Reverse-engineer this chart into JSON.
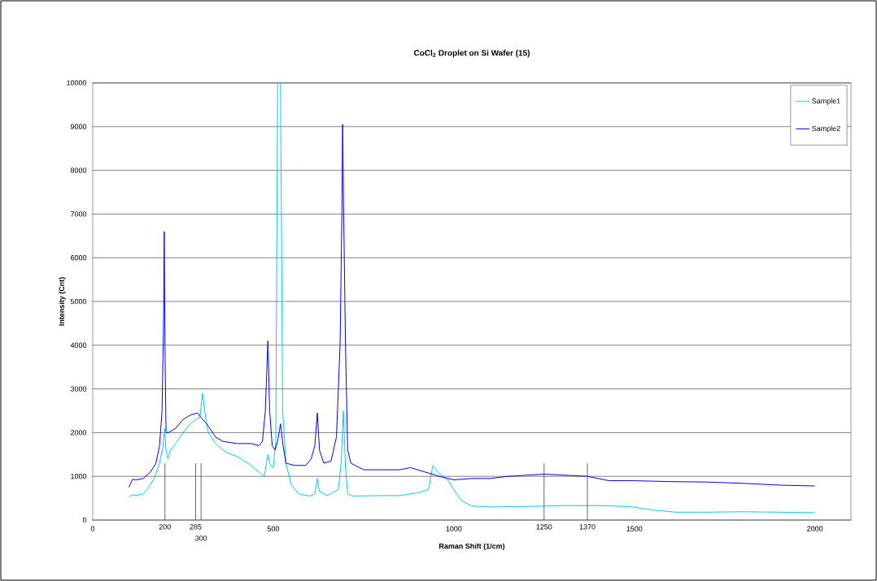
{
  "chart_data": {
    "type": "line",
    "title": "CoCl$_{2}$ Droplet on Si Wafer (15)",
    "xlabel": "Raman Shift (1/cm)",
    "ylabel": "Intensity (Cnt)",
    "xlim": [
      0,
      2100
    ],
    "xticks": [
      0,
      500,
      1000,
      1500,
      2000
    ],
    "ylim": [
      0,
      10000
    ],
    "yticks": [
      0,
      1000,
      2000,
      3000,
      4000,
      5000,
      6000,
      7000,
      8000,
      9000,
      10000
    ],
    "grid": "y",
    "legend": "top right",
    "ref_lines": [
      {
        "axis": "x",
        "value": 200,
        "label": "200"
      },
      {
        "axis": "x",
        "value": 285,
        "label": "285"
      },
      {
        "axis": "x",
        "value": 300,
        "label": "300"
      },
      {
        "axis": "x",
        "value": 1250,
        "label": "1250"
      },
      {
        "axis": "x",
        "value": 1370,
        "label": "1370"
      }
    ],
    "series": [
      {
        "name": "Sample1",
        "color": "#00ccff",
        "x": [
          100,
          110,
          120,
          140,
          155,
          170,
          185,
          195,
          199,
          203,
          208,
          215,
          230,
          250,
          270,
          285,
          297,
          304,
          310,
          320,
          340,
          370,
          400,
          430,
          460,
          475,
          485,
          492,
          500,
          507,
          512,
          520,
          526,
          535,
          550,
          570,
          600,
          615,
          622,
          628,
          650,
          680,
          688,
          694,
          700,
          706,
          720,
          800,
          850,
          900,
          930,
          942,
          955,
          985,
          1000,
          1020,
          1050,
          1100,
          1200,
          1300,
          1400,
          1450,
          1495,
          1550,
          1615,
          1700,
          1800,
          1900,
          2000
        ],
        "values": [
          530,
          580,
          560,
          600,
          750,
          950,
          1300,
          1700,
          2100,
          1600,
          1400,
          1600,
          1750,
          2000,
          2200,
          2300,
          2350,
          2900,
          2500,
          2000,
          1750,
          1550,
          1450,
          1300,
          1100,
          1000,
          1500,
          1250,
          1200,
          1800,
          10000,
          10000,
          2500,
          1300,
          800,
          600,
          550,
          600,
          950,
          650,
          560,
          700,
          1300,
          2500,
          1200,
          600,
          550,
          560,
          560,
          620,
          700,
          1250,
          1100,
          900,
          700,
          450,
          320,
          300,
          310,
          330,
          330,
          320,
          300,
          230,
          180,
          180,
          190,
          180,
          170
        ]
      },
      {
        "name": "Sample2",
        "color": "#0000ff",
        "x": [
          100,
          110,
          120,
          140,
          160,
          175,
          185,
          192,
          196,
          198,
          200,
          203,
          210,
          230,
          250,
          270,
          290,
          300,
          320,
          340,
          360,
          400,
          440,
          460,
          470,
          478,
          485,
          490,
          497,
          505,
          512,
          520,
          527,
          535,
          560,
          590,
          605,
          615,
          622,
          628,
          640,
          660,
          675,
          685,
          690,
          692,
          695,
          700,
          706,
          715,
          750,
          800,
          850,
          880,
          920,
          960,
          1000,
          1050,
          1100,
          1150,
          1250,
          1370,
          1400,
          1430,
          1500,
          1600,
          1700,
          1800,
          1900,
          2000
        ],
        "values": [
          750,
          930,
          920,
          950,
          1100,
          1300,
          1700,
          2500,
          4500,
          6600,
          4000,
          2000,
          2000,
          2100,
          2300,
          2400,
          2450,
          2350,
          2150,
          1900,
          1800,
          1750,
          1750,
          1700,
          1800,
          2500,
          4100,
          2500,
          1700,
          1600,
          1800,
          2200,
          1700,
          1300,
          1250,
          1250,
          1400,
          1700,
          2450,
          1600,
          1300,
          1350,
          1900,
          4000,
          7000,
          9050,
          7000,
          4000,
          1600,
          1300,
          1150,
          1150,
          1150,
          1200,
          1100,
          1000,
          920,
          950,
          950,
          1000,
          1050,
          1000,
          950,
          900,
          900,
          880,
          870,
          840,
          800,
          780
        ]
      }
    ]
  }
}
